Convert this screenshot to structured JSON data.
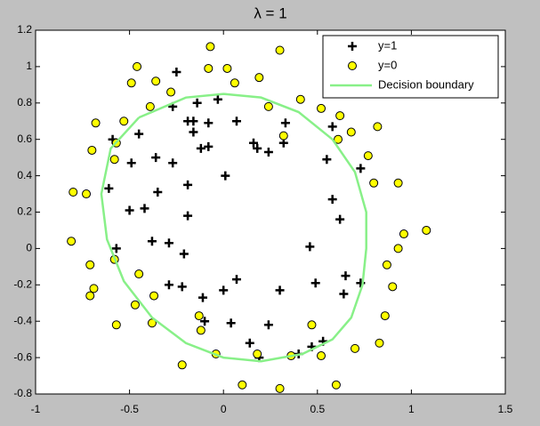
{
  "chart_data": {
    "type": "scatter",
    "title": "λ = 1",
    "xlim": [
      -1,
      1.5
    ],
    "xticks": [
      -1,
      -0.5,
      0,
      0.5,
      1,
      1.5
    ],
    "ylim": [
      -0.8,
      1.2
    ],
    "yticks": [
      -0.8,
      -0.6,
      -0.4,
      -0.2,
      0,
      0.2,
      0.4,
      0.6,
      0.8,
      1,
      1.2
    ],
    "legend": "upper right",
    "series": [
      {
        "name": "y=1",
        "color": "#000000",
        "marker": "plus",
        "x": [
          -0.25,
          -0.27,
          -0.14,
          -0.03,
          -0.19,
          -0.16,
          -0.08,
          -0.16,
          0.07,
          0.33,
          -0.59,
          -0.45,
          -0.49,
          -0.36,
          -0.27,
          -0.12,
          -0.08,
          0.16,
          0.18,
          0.24,
          0.32,
          0.58,
          -0.61,
          -0.35,
          -0.19,
          0.01,
          0.55,
          0.73,
          -0.5,
          -0.42,
          -0.19,
          0.58,
          0.62,
          -0.38,
          -0.29,
          -0.57,
          -0.21,
          0.46,
          0.65,
          0.73,
          -0.29,
          -0.22,
          -0.11,
          0,
          0.07,
          0.3,
          0.49,
          0.64,
          -0.1,
          0.04,
          0.24,
          0.14,
          0.19,
          0.53,
          0.47,
          0.4
        ],
        "y": [
          0.97,
          0.78,
          0.8,
          0.82,
          0.7,
          0.7,
          0.69,
          0.64,
          0.7,
          0.69,
          0.6,
          0.63,
          0.47,
          0.5,
          0.47,
          0.55,
          0.56,
          0.58,
          0.55,
          0.53,
          0.58,
          0.67,
          0.33,
          0.31,
          0.35,
          0.4,
          0.49,
          0.44,
          0.21,
          0.22,
          0.18,
          0.27,
          0.16,
          0.04,
          0.03,
          0,
          -0.03,
          0.01,
          -0.15,
          -0.19,
          -0.2,
          -0.21,
          -0.27,
          -0.23,
          -0.17,
          -0.23,
          -0.19,
          -0.25,
          -0.4,
          -0.41,
          -0.42,
          -0.52,
          -0.6,
          -0.51,
          -0.54,
          -0.58
        ]
      },
      {
        "name": "y=0",
        "color": "#ffff00",
        "marker": "circle",
        "x": [
          -0.07,
          -0.46,
          -0.49,
          -0.36,
          0.3,
          -0.08,
          0.02,
          0.19,
          0.41,
          0.52,
          0.62,
          0.82,
          0.68,
          0.61,
          0.77,
          0.8,
          0.93,
          0.96,
          0.93,
          0.87,
          0.9,
          0.86,
          0.83,
          0.7,
          0.6,
          0.52,
          0.47,
          0.36,
          0.3,
          0.18,
          0.1,
          -0.04,
          -0.22,
          -0.13,
          -0.12,
          -0.45,
          -0.37,
          -0.38,
          -0.47,
          -0.57,
          -0.69,
          -0.71,
          -0.81,
          -0.71,
          -0.58,
          -0.7,
          -0.73,
          -0.8,
          -0.68,
          -0.53,
          -0.57,
          -0.58,
          -0.39,
          -0.28,
          0.06,
          0.24,
          0.32,
          1.08
        ],
        "y": [
          1.11,
          1,
          0.91,
          0.92,
          1.09,
          0.99,
          0.99,
          0.94,
          0.82,
          0.77,
          0.73,
          0.67,
          0.64,
          0.6,
          0.51,
          0.36,
          0.36,
          0.08,
          0,
          -0.09,
          -0.21,
          -0.37,
          -0.52,
          -0.55,
          -0.75,
          -0.59,
          -0.42,
          -0.59,
          -0.77,
          -0.58,
          -0.75,
          -0.58,
          -0.64,
          -0.37,
          -0.45,
          -0.14,
          -0.26,
          -0.41,
          -0.31,
          -0.42,
          -0.22,
          -0.26,
          0.04,
          -0.09,
          -0.06,
          0.54,
          0.3,
          0.31,
          0.69,
          0.7,
          0.58,
          0.49,
          0.78,
          0.86,
          0.91,
          0.78,
          0.62,
          0.1
        ]
      },
      {
        "name": "Decision boundary",
        "color": "#88f088",
        "marker": "line",
        "x": [
          -0.45,
          -0.2,
          0,
          0.2,
          0.4,
          0.58,
          0.7,
          0.76,
          0.76,
          0.74,
          0.68,
          0.58,
          0.42,
          0.2,
          0,
          -0.2,
          -0.38,
          -0.53,
          -0.62,
          -0.65,
          -0.6,
          -0.45
        ],
        "y": [
          0.72,
          0.83,
          0.85,
          0.83,
          0.75,
          0.6,
          0.42,
          0.2,
          0,
          -0.2,
          -0.38,
          -0.5,
          -0.58,
          -0.62,
          -0.6,
          -0.52,
          -0.38,
          -0.18,
          0.05,
          0.3,
          0.55,
          0.72
        ]
      }
    ]
  }
}
